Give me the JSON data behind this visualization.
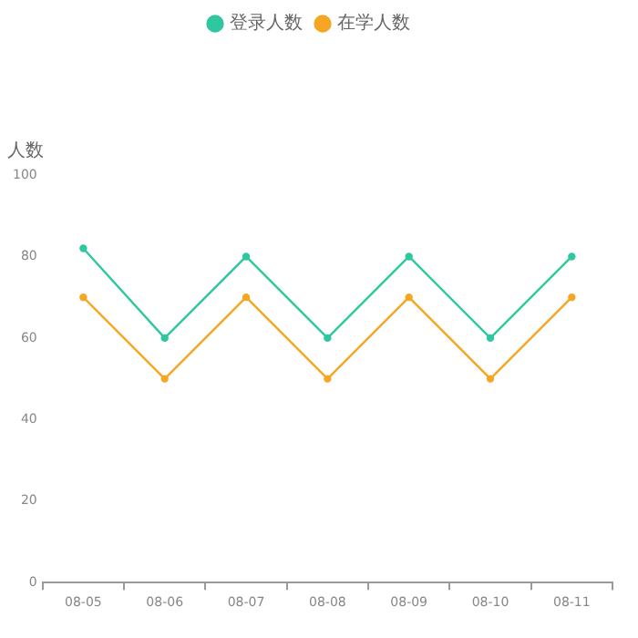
{
  "chart_data": {
    "type": "line",
    "ylabel": "人数",
    "categories": [
      "08-05",
      "08-06",
      "08-07",
      "08-08",
      "08-09",
      "08-10",
      "08-11"
    ],
    "series": [
      {
        "name": "登录人数",
        "color": "#2ec7a0",
        "values": [
          82,
          60,
          80,
          60,
          80,
          60,
          80
        ]
      },
      {
        "name": "在学人数",
        "color": "#f5a623",
        "values": [
          70,
          50,
          70,
          50,
          70,
          50,
          70
        ]
      }
    ],
    "ylim": [
      0,
      100
    ],
    "yticks": [
      0,
      20,
      40,
      60,
      80,
      100
    ],
    "grid": false,
    "legend": "top",
    "marker": "circle",
    "line_style": "solid"
  }
}
